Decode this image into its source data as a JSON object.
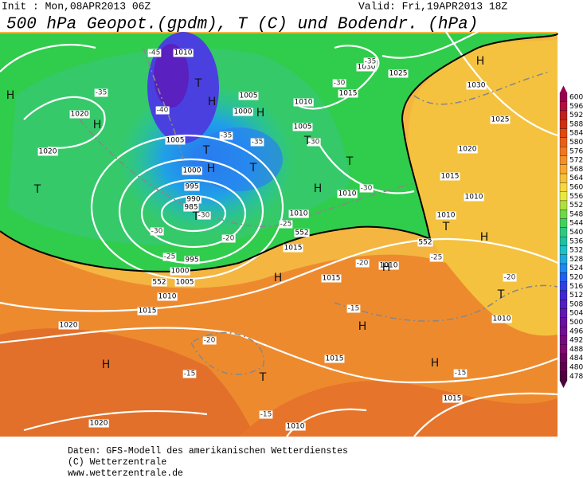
{
  "header": {
    "init": "Init : Mon,08APR2013 06Z",
    "valid": "Valid: Fri,19APR2013 18Z",
    "title": "500 hPa Geopot.(gpdm), T (C) und Bodendr. (hPa)"
  },
  "colorbar": {
    "labels": [
      "600",
      "596",
      "592",
      "588",
      "584",
      "580",
      "576",
      "572",
      "568",
      "564",
      "560",
      "556",
      "552",
      "548",
      "544",
      "540",
      "536",
      "532",
      "528",
      "524",
      "520",
      "516",
      "512",
      "508",
      "504",
      "500",
      "496",
      "492",
      "488",
      "484",
      "480",
      "478"
    ],
    "colors": [
      "#9a0050",
      "#b01040",
      "#c02020",
      "#d03010",
      "#e04a10",
      "#e86018",
      "#f07820",
      "#f59028",
      "#f8a830",
      "#f8c038",
      "#f8d840",
      "#e8e840",
      "#b0e040",
      "#70d848",
      "#40d060",
      "#30c880",
      "#20c0a0",
      "#20c0c8",
      "#20a8e0",
      "#2088f0",
      "#2060f0",
      "#3040e0",
      "#4028d0",
      "#5020c0",
      "#6018b0",
      "#6810a0",
      "#701090",
      "#780880",
      "#800870",
      "#700060",
      "#600050",
      "#500040"
    ]
  },
  "map_labels": [
    "1010",
    "1005",
    "1000",
    "1005",
    "1000",
    "995",
    "990",
    "985",
    "995",
    "1000",
    "1005",
    "1010",
    "1015",
    "1020",
    "1020",
    "1015",
    "1010",
    "1015",
    "1010",
    "1015",
    "1010",
    "1010",
    "1020",
    "1025",
    "1030",
    "1025",
    "1030",
    "1015",
    "1010",
    "1005",
    "1010",
    "1015",
    "1010",
    "1015",
    "1020",
    "1020",
    "1010"
  ],
  "temp_labels": [
    "-45",
    "-40",
    "-35",
    "-35",
    "-30",
    "-30",
    "-30",
    "-25",
    "-25",
    "-20",
    "-30",
    "-35",
    "-35",
    "-30",
    "-20",
    "-25",
    "-20",
    "-15",
    "-20",
    "-15",
    "-15",
    "-15"
  ],
  "height_labels": [
    "552",
    "552",
    "552"
  ],
  "centers": [
    "H",
    "H",
    "T",
    "T",
    "H",
    "H",
    "T",
    "H",
    "T",
    "T",
    "T",
    "H",
    "T",
    "H",
    "H",
    "H",
    "T",
    "T",
    "H",
    "T",
    "H",
    "H",
    "H"
  ],
  "footer": [
    "Daten: GFS-Modell des amerikanischen Wetterdienstes",
    "(C) Wetterzentrale",
    "www.wetterzentrale.de"
  ]
}
